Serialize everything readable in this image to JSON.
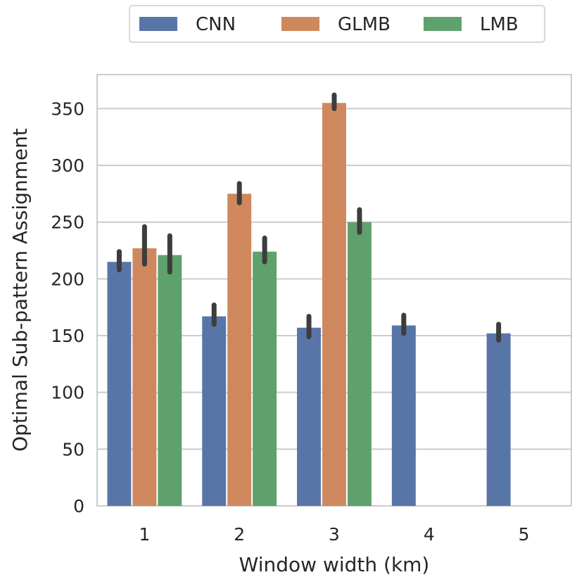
{
  "chart_data": {
    "type": "bar",
    "xlabel": "Window width (km)",
    "ylabel": "Optimal Sub-pattern Assignment",
    "categories": [
      "1",
      "2",
      "3",
      "4",
      "5"
    ],
    "ylim": [
      0,
      380
    ],
    "yticks": [
      0,
      50,
      100,
      150,
      200,
      250,
      300,
      350
    ],
    "grid": "horizontal",
    "legend_position": "top-center",
    "series": [
      {
        "name": "CNN",
        "color": "#5875a8",
        "values": [
          215,
          167,
          157,
          159,
          152
        ],
        "ci": [
          [
            208,
            224
          ],
          [
            160,
            177
          ],
          [
            149,
            167
          ],
          [
            152,
            168
          ],
          [
            146,
            160
          ]
        ]
      },
      {
        "name": "GLMB",
        "color": "#cf885e",
        "values": [
          227,
          275,
          355,
          null,
          null
        ],
        "ci": [
          [
            213,
            246
          ],
          [
            267,
            284
          ],
          [
            350,
            362
          ],
          null,
          null
        ]
      },
      {
        "name": "LMB",
        "color": "#5fa16c",
        "values": [
          221,
          224,
          250,
          null,
          null
        ],
        "ci": [
          [
            206,
            238
          ],
          [
            215,
            236
          ],
          [
            241,
            261
          ],
          null,
          null
        ]
      }
    ]
  }
}
